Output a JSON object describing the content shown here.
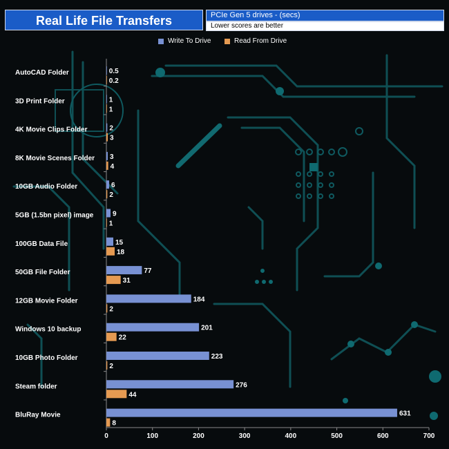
{
  "header": {
    "title": "Real Life File Transfers",
    "subtitle": "PCIe Gen 5  drives - (secs)",
    "note": "Lower scores are better"
  },
  "colors": {
    "write": "#7891d3",
    "read": "#e59a52",
    "header_blue": "#1a5cc7",
    "background": "#070b0d",
    "circuit": "#0f4f54"
  },
  "chart_data": {
    "type": "bar",
    "orientation": "horizontal",
    "categories": [
      "AutoCAD Folder",
      "3D Print Folder",
      "4K Movie Clips Folder",
      "8K Movie Scenes Folder",
      "10GB Audio Folder",
      "5GB (1.5bn pixel) image",
      "100GB Data File",
      "50GB File Folder",
      "12GB Movie Folder",
      "Windows 10 backup",
      "10GB Photo Folder",
      "Steam folder",
      "BluRay Movie"
    ],
    "series": [
      {
        "name": "Write To  Drive",
        "values": [
          0.5,
          1,
          2,
          3,
          6,
          9,
          15,
          77,
          184,
          201,
          223,
          276,
          631
        ],
        "labels": [
          "0.5",
          "1",
          "2",
          "3",
          "6",
          "9",
          "15",
          "77",
          "184",
          "201",
          "223",
          "276",
          "631"
        ]
      },
      {
        "name": "Read From  Drive",
        "values": [
          0.2,
          1,
          3,
          4,
          2,
          1,
          18,
          31,
          2,
          22,
          2,
          44,
          8
        ],
        "labels": [
          "0.2",
          "1",
          "3",
          "4",
          "2",
          "1",
          "18",
          "31",
          "2",
          "22",
          "2",
          "44",
          "8"
        ]
      }
    ],
    "xlim": [
      0,
      700
    ],
    "xticks": [
      "0",
      "100",
      "200",
      "300",
      "400",
      "500",
      "600",
      "700"
    ],
    "legend": "top-center",
    "grid": false
  }
}
